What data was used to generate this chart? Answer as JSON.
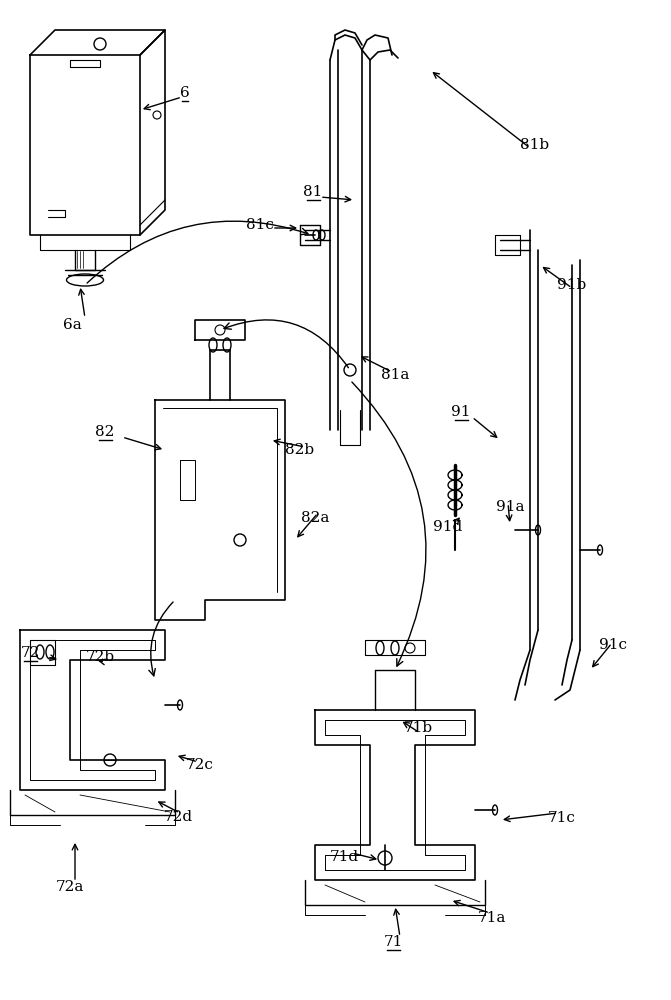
{
  "bg_color": "#ffffff",
  "line_color": "#000000",
  "figsize": [
    6.71,
    10.0
  ],
  "dpi": 100,
  "label_data": {
    "6": [
      185,
      93,
      true
    ],
    "6a": [
      72,
      325,
      false
    ],
    "81": [
      313,
      192,
      true
    ],
    "81a": [
      395,
      375,
      false
    ],
    "81b": [
      535,
      145,
      false
    ],
    "81c": [
      260,
      225,
      false
    ],
    "82": [
      105,
      432,
      true
    ],
    "82a": [
      315,
      518,
      false
    ],
    "82b": [
      300,
      450,
      false
    ],
    "91": [
      461,
      412,
      true
    ],
    "91a": [
      510,
      507,
      false
    ],
    "91b": [
      572,
      285,
      false
    ],
    "91c": [
      613,
      645,
      false
    ],
    "91d": [
      448,
      527,
      false
    ],
    "71": [
      393,
      942,
      true
    ],
    "71a": [
      492,
      918,
      false
    ],
    "71b": [
      418,
      728,
      false
    ],
    "71c": [
      562,
      818,
      false
    ],
    "71d": [
      344,
      857,
      false
    ],
    "72": [
      30,
      653,
      true
    ],
    "72a": [
      70,
      887,
      false
    ],
    "72b": [
      100,
      657,
      false
    ],
    "72c": [
      200,
      765,
      false
    ],
    "72d": [
      178,
      817,
      false
    ]
  }
}
